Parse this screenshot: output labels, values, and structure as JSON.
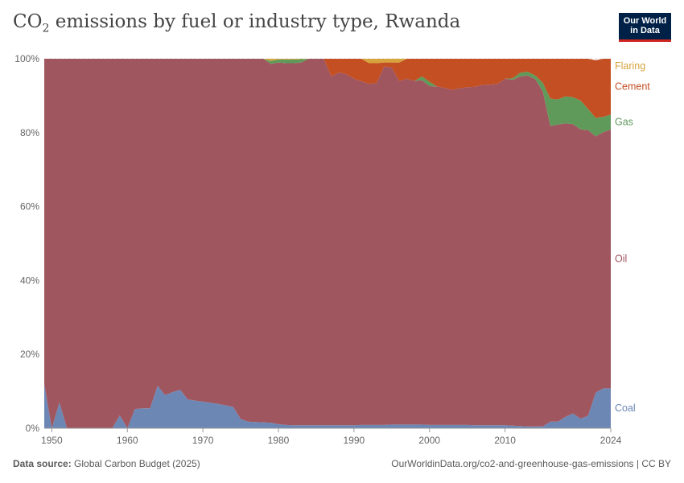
{
  "header": {
    "title_main": "CO",
    "title_sub": "2",
    "title_rest": " emissions by fuel or industry type, Rwanda",
    "logo_line1": "Our World",
    "logo_line2": "in Data"
  },
  "footer": {
    "source_label": "Data source:",
    "source_text": " Global Carbon Budget (2025)",
    "url_text": "OurWorldinData.org/co2-and-greenhouse-gas-emissions | CC BY"
  },
  "colors": {
    "coal": "#6d87b5",
    "oil": "#a0565f",
    "gas": "#5f9a5a",
    "cement": "#c44f22",
    "flaring": "#d6a33c"
  },
  "chart_data": {
    "type": "area",
    "stacked": true,
    "normalized": true,
    "title": "CO₂ emissions by fuel or industry type, Rwanda",
    "xlabel": "",
    "ylabel": "",
    "ylim": [
      0,
      100
    ],
    "xlim": [
      1949,
      2024
    ],
    "x_ticks": [
      "1950",
      "1960",
      "1970",
      "1980",
      "1990",
      "2000",
      "2010",
      "2024"
    ],
    "x_tick_values": [
      1950,
      1960,
      1970,
      1980,
      1990,
      2000,
      2010,
      2024
    ],
    "y_ticks": [
      "0%",
      "20%",
      "40%",
      "60%",
      "80%",
      "100%"
    ],
    "y_tick_values": [
      0,
      20,
      40,
      60,
      80,
      100
    ],
    "legend_position": "right",
    "x": [
      1949,
      1950,
      1951,
      1952,
      1953,
      1954,
      1955,
      1956,
      1957,
      1958,
      1959,
      1960,
      1961,
      1962,
      1963,
      1964,
      1965,
      1966,
      1967,
      1968,
      1969,
      1970,
      1971,
      1972,
      1973,
      1974,
      1975,
      1976,
      1977,
      1978,
      1979,
      1980,
      1981,
      1982,
      1983,
      1984,
      1985,
      1986,
      1987,
      1988,
      1989,
      1990,
      1991,
      1992,
      1993,
      1994,
      1995,
      1996,
      1997,
      1998,
      1999,
      2000,
      2001,
      2002,
      2003,
      2004,
      2005,
      2006,
      2007,
      2008,
      2009,
      2010,
      2011,
      2012,
      2013,
      2014,
      2015,
      2016,
      2017,
      2018,
      2019,
      2020,
      2021,
      2022,
      2023,
      2024
    ],
    "series": [
      {
        "name": "Coal",
        "values": [
          12,
          0,
          7,
          0,
          0,
          0,
          0,
          0,
          0,
          0,
          3.5,
          0,
          5.2,
          5.4,
          5.4,
          11.5,
          9,
          9.8,
          10.4,
          7.8,
          7.5,
          7.2,
          6.9,
          6.6,
          6.2,
          5.8,
          2.5,
          1.8,
          1.7,
          1.6,
          1.5,
          1.1,
          0.9,
          0.8,
          0.8,
          0.8,
          0.8,
          0.8,
          0.8,
          0.8,
          0.8,
          0.8,
          0.9,
          0.9,
          0.9,
          0.9,
          1,
          1,
          1,
          1,
          1,
          0.9,
          0.9,
          0.9,
          0.9,
          0.9,
          0.9,
          0.8,
          0.8,
          0.8,
          0.8,
          0.8,
          0.7,
          0.6,
          0.5,
          0.5,
          0.5,
          1.8,
          1.8,
          3.1,
          4,
          2.6,
          3.4,
          9.6,
          10.8,
          10.8
        ]
      },
      {
        "name": "Oil",
        "values": [
          88,
          100,
          93,
          100,
          100,
          100,
          100,
          100,
          100,
          100,
          96.5,
          100,
          94.8,
          94.6,
          94.6,
          88.5,
          91,
          90.2,
          89.6,
          92.2,
          92.5,
          92.8,
          93.1,
          93.4,
          93.8,
          94.2,
          97.5,
          98.2,
          98.3,
          98.4,
          97.1,
          97.9,
          97.9,
          98,
          98.2,
          99.2,
          99.2,
          99.2,
          94.4,
          95.5,
          95,
          93.8,
          93,
          92.3,
          92.5,
          97,
          96.6,
          93,
          93.6,
          93,
          93.2,
          91.7,
          91.6,
          91.2,
          90.7,
          91.1,
          91.4,
          91.6,
          92.1,
          92.2,
          92.4,
          93.8,
          93.6,
          94.6,
          95,
          94,
          90.7,
          80,
          80.4,
          79.4,
          78.3,
          78.3,
          77.3,
          69.4,
          69.3,
          70.1
        ]
      },
      {
        "name": "Gas",
        "values": [
          0,
          0,
          0,
          0,
          0,
          0,
          0,
          0,
          0,
          0,
          0,
          0,
          0,
          0,
          0,
          0,
          0,
          0,
          0,
          0,
          0,
          0,
          0,
          0,
          0,
          0,
          0,
          0,
          0,
          0,
          0.8,
          0.8,
          1,
          1,
          0.9,
          0,
          0,
          0,
          0,
          0,
          0,
          0,
          0,
          0,
          0,
          0,
          0,
          0,
          0,
          0,
          1,
          1.2,
          0,
          0,
          0,
          0,
          0,
          0,
          0,
          0,
          0,
          0,
          0.4,
          1,
          1,
          1,
          2.3,
          7.4,
          6.8,
          7.3,
          7.3,
          7.8,
          5.7,
          5,
          4.2,
          4
        ]
      },
      {
        "name": "Cement",
        "values": [
          0,
          0,
          0,
          0,
          0,
          0,
          0,
          0,
          0,
          0,
          0,
          0,
          0,
          0,
          0,
          0,
          0,
          0,
          0,
          0,
          0,
          0,
          0,
          0,
          0,
          0,
          0,
          0,
          0,
          0,
          0,
          0,
          0,
          0,
          0,
          0,
          0,
          0,
          4.8,
          3.7,
          4.2,
          5.4,
          6.1,
          5.6,
          5.4,
          1.1,
          1.4,
          5,
          5.4,
          6,
          4.8,
          6.2,
          7.5,
          7.9,
          8.4,
          8,
          7.7,
          7.6,
          7.1,
          7,
          6.8,
          5.4,
          5.3,
          3.8,
          3.5,
          4.5,
          6.5,
          10.8,
          11,
          10.2,
          10.4,
          11.3,
          13.6,
          15.6,
          15.7,
          15.1
        ]
      },
      {
        "name": "Flaring",
        "values": [
          0,
          0,
          0,
          0,
          0,
          0,
          0,
          0,
          0,
          0,
          0,
          0,
          0,
          0,
          0,
          0,
          0,
          0,
          0,
          0,
          0,
          0,
          0,
          0,
          0,
          0,
          0,
          0,
          0,
          0,
          0.6,
          0.2,
          0.2,
          0.2,
          0.1,
          0,
          0,
          0,
          0,
          0,
          0,
          0,
          0,
          1.2,
          1.2,
          1,
          1,
          1,
          0,
          0,
          0,
          0,
          0,
          0,
          0,
          0,
          0,
          0,
          0,
          0,
          0,
          0,
          0,
          0,
          0,
          0,
          0,
          0,
          0,
          0,
          0,
          0,
          0,
          0,
          0,
          0
        ]
      }
    ]
  }
}
